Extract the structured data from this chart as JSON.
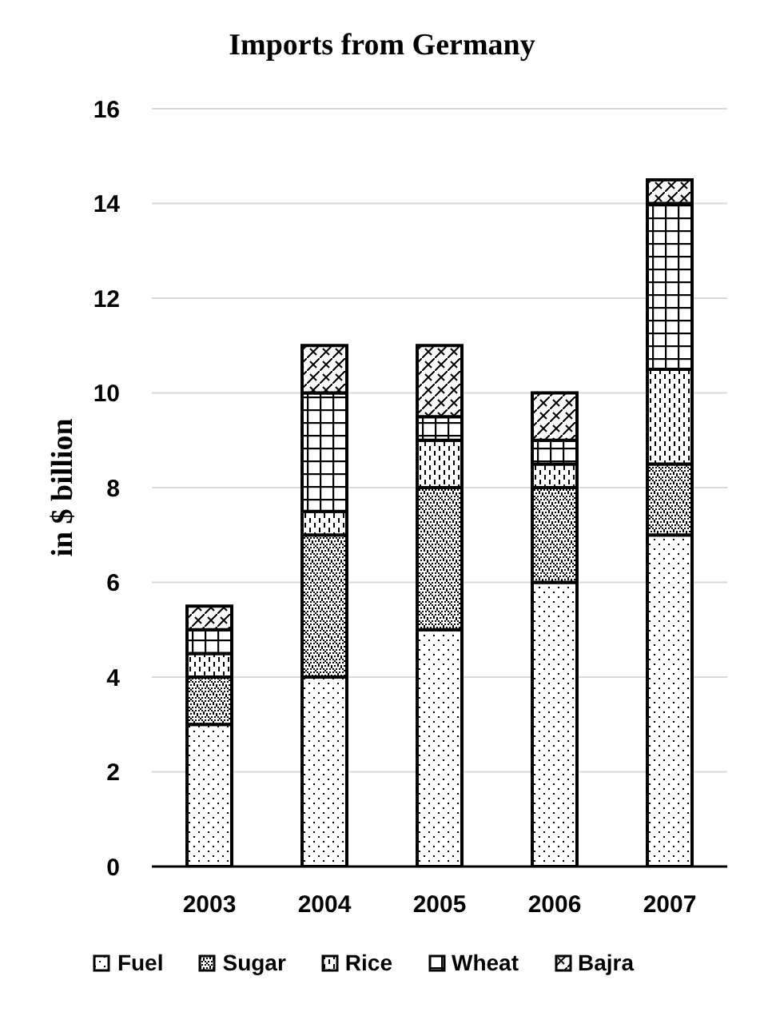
{
  "chart_data": {
    "type": "bar",
    "title": "Imports from Germany",
    "ylabel": "in $ billion",
    "categories": [
      "2003",
      "2004",
      "2005",
      "2006",
      "2007"
    ],
    "stacked": true,
    "series": [
      {
        "name": "Fuel",
        "color": "#000000",
        "values": [
          3,
          4,
          5,
          6,
          7
        ]
      },
      {
        "name": "Sugar",
        "color": "#000000",
        "values": [
          1,
          3,
          3,
          2,
          1.5
        ]
      },
      {
        "name": "Rice",
        "color": "#000000",
        "values": [
          0.5,
          0.5,
          1,
          0.5,
          2
        ]
      },
      {
        "name": "Wheat",
        "color": "#000000",
        "values": [
          0.5,
          2.5,
          0.5,
          0.5,
          3.5
        ]
      },
      {
        "name": "Bajra",
        "color": "#000000",
        "values": [
          0.5,
          1,
          1.5,
          1,
          0.5
        ]
      }
    ],
    "ylim": [
      0,
      16
    ],
    "yticks": [
      0,
      2,
      4,
      6,
      8,
      10,
      12,
      14,
      16
    ],
    "grid": "y",
    "legend": "bottom"
  }
}
